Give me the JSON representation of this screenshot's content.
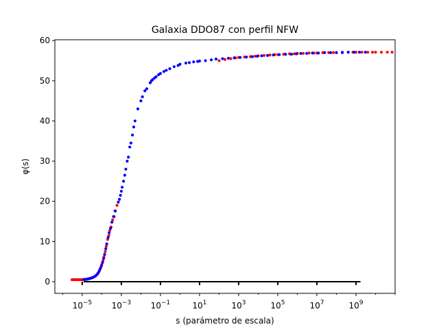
{
  "chart_data": {
    "type": "scatter",
    "title": "Galaxia DDO87 con perfil NFW",
    "xlabel": "s (parámetro de escala)",
    "ylabel": "φ(s)",
    "xscale": "log",
    "xlim": [
      4e-07,
      100000000000.0
    ],
    "ylim": [
      -2.9,
      60.2
    ],
    "x_ticks": [
      {
        "value": 1e-05,
        "label": "10",
        "exp": "−5"
      },
      {
        "value": 0.001,
        "label": "10",
        "exp": "−3"
      },
      {
        "value": 0.1,
        "label": "10",
        "exp": "−1"
      },
      {
        "value": 10.0,
        "label": "10",
        "exp": "1"
      },
      {
        "value": 1000.0,
        "label": "10",
        "exp": "3"
      },
      {
        "value": 100000.0,
        "label": "10",
        "exp": "5"
      },
      {
        "value": 10000000.0,
        "label": "10",
        "exp": "7"
      },
      {
        "value": 1000000000.0,
        "label": "10",
        "exp": "9"
      }
    ],
    "y_ticks": [
      0,
      10,
      20,
      30,
      40,
      50,
      60
    ],
    "hline": {
      "y": 0,
      "x_from": 1.2e-05,
      "x_to": 1700000000.0,
      "color": "#000000"
    },
    "series": [
      {
        "color": "#ff0000",
        "points": [
          [
            3e-06,
            0.5
          ],
          [
            3.5e-06,
            0.5
          ],
          [
            4e-06,
            0.5
          ],
          [
            4.5e-06,
            0.5
          ],
          [
            5e-06,
            0.5
          ],
          [
            5.6e-06,
            0.5
          ],
          [
            6.3e-06,
            0.5
          ],
          [
            7e-06,
            0.5
          ],
          [
            7.9e-06,
            0.5
          ],
          [
            8.9e-06,
            0.5
          ],
          [
            1e-05,
            0.5
          ],
          [
            1.2e-05,
            0.5
          ],
          [
            1.4e-05,
            0.55
          ],
          [
            1.7e-05,
            0.6
          ],
          [
            2e-05,
            0.7
          ],
          [
            2.4e-05,
            0.8
          ],
          [
            2.8e-05,
            0.9
          ],
          [
            3.3e-05,
            1.0
          ],
          [
            4e-05,
            1.2
          ],
          [
            5e-05,
            1.5
          ],
          [
            6e-05,
            1.9
          ],
          [
            7e-05,
            2.4
          ],
          [
            8e-05,
            3.0
          ],
          [
            9e-05,
            3.6
          ],
          [
            0.0001,
            4.3
          ],
          [
            0.000115,
            5.2
          ],
          [
            0.00013,
            6.2
          ],
          [
            0.00015,
            7.5
          ],
          [
            0.00017,
            8.8
          ],
          [
            0.0002,
            10.5
          ],
          [
            0.00023,
            11.5
          ],
          [
            0.00026,
            12.8
          ],
          [
            0.0003,
            13.6
          ],
          [
            0.00036,
            15.4
          ],
          [
            0.00043,
            16.2
          ],
          [
            0.0005,
            17.6
          ],
          [
            0.0006,
            19.0
          ],
          [
            100.0,
            55.0
          ],
          [
            200.0,
            55.3
          ],
          [
            400.0,
            55.5
          ],
          [
            700.0,
            55.7
          ],
          [
            1000.0,
            55.8
          ],
          [
            2000.0,
            55.9
          ],
          [
            4000.0,
            56.0
          ],
          [
            7000.0,
            56.1
          ],
          [
            10000.0,
            56.2
          ],
          [
            20000.0,
            56.3
          ],
          [
            40000.0,
            56.4
          ],
          [
            70000.0,
            56.5
          ],
          [
            100000.0,
            56.5
          ],
          [
            200000.0,
            56.6
          ],
          [
            400000.0,
            56.7
          ],
          [
            700000.0,
            56.7
          ],
          [
            1000000.0,
            56.8
          ],
          [
            2000000.0,
            56.8
          ],
          [
            4000000.0,
            56.9
          ],
          [
            7000000.0,
            56.9
          ],
          [
            10000000.0,
            56.9
          ],
          [
            20000000.0,
            57.0
          ],
          [
            40000000.0,
            57.0
          ],
          [
            70000000.0,
            57.0
          ],
          [
            100000000.0,
            57.0
          ],
          [
            200000000.0,
            57.1
          ],
          [
            400000000.0,
            57.1
          ],
          [
            700000000.0,
            57.1
          ],
          [
            1000000000.0,
            57.1
          ],
          [
            2000000000.0,
            57.1
          ],
          [
            4000000000.0,
            57.1
          ],
          [
            7000000000.0,
            57.1
          ],
          [
            10000000000.0,
            57.1
          ],
          [
            20000000000.0,
            57.1
          ],
          [
            40000000000.0,
            57.1
          ],
          [
            70000000000.0,
            57.1
          ]
        ]
      },
      {
        "color": "#0000ff",
        "points": [
          [
            1.2e-05,
            0.55
          ],
          [
            1.5e-05,
            0.6
          ],
          [
            1.8e-05,
            0.65
          ],
          [
            2.2e-05,
            0.75
          ],
          [
            2.7e-05,
            0.85
          ],
          [
            3.3e-05,
            1.0
          ],
          [
            4e-05,
            1.2
          ],
          [
            4.8e-05,
            1.45
          ],
          [
            5.7e-05,
            1.8
          ],
          [
            6.6e-05,
            2.2
          ],
          [
            7.5e-05,
            2.7
          ],
          [
            8.5e-05,
            3.3
          ],
          [
            9.7e-05,
            4.0
          ],
          [
            0.00011,
            4.8
          ],
          [
            0.000125,
            5.8
          ],
          [
            0.00014,
            6.8
          ],
          [
            0.00016,
            8.2
          ],
          [
            0.00018,
            9.4
          ],
          [
            0.00021,
            11.0
          ],
          [
            0.00024,
            12.2
          ],
          [
            0.00028,
            13.3
          ],
          [
            0.00033,
            14.8
          ],
          [
            0.0004,
            16.2
          ],
          [
            0.00048,
            17.6
          ],
          [
            0.0007,
            19.8
          ],
          [
            0.0008,
            20.5
          ],
          [
            0.0009,
            21.5
          ],
          [
            0.001,
            22.5
          ],
          [
            0.0011,
            23.5
          ],
          [
            0.0013,
            25.0
          ],
          [
            0.0015,
            26.5
          ],
          [
            0.0017,
            28.0
          ],
          [
            0.002,
            30.0
          ],
          [
            0.0023,
            31.0
          ],
          [
            0.0027,
            33.5
          ],
          [
            0.0031,
            34.5
          ],
          [
            0.0037,
            36.5
          ],
          [
            0.0043,
            38.5
          ],
          [
            0.005,
            40.0
          ],
          [
            0.007,
            43.0
          ],
          [
            0.01,
            45.0
          ],
          [
            0.012,
            46.0
          ],
          [
            0.016,
            47.5
          ],
          [
            0.02,
            48.0
          ],
          [
            0.03,
            49.5
          ],
          [
            0.035,
            50.0
          ],
          [
            0.04,
            50.3
          ],
          [
            0.05,
            50.7
          ],
          [
            0.06,
            51.0
          ],
          [
            0.08,
            51.5
          ],
          [
            0.1,
            51.8
          ],
          [
            0.15,
            52.3
          ],
          [
            0.2,
            52.6
          ],
          [
            0.3,
            53.0
          ],
          [
            0.5,
            53.5
          ],
          [
            0.8,
            53.8
          ],
          [
            1.0,
            54.1
          ],
          [
            2.0,
            54.4
          ],
          [
            3.0,
            54.5
          ],
          [
            5.0,
            54.7
          ],
          [
            8.0,
            54.8
          ],
          [
            10.0,
            54.9
          ],
          [
            20.0,
            55.0
          ],
          [
            40.0,
            55.2
          ],
          [
            70.0,
            55.4
          ],
          [
            150.0,
            55.5
          ],
          [
            300.0,
            55.6
          ],
          [
            600.0,
            55.7
          ],
          [
            1200.0,
            55.8
          ],
          [
            2500.0,
            55.9
          ],
          [
            5000.0,
            56.0
          ],
          [
            9000.0,
            56.1
          ],
          [
            15000.0,
            56.2
          ],
          [
            30000.0,
            56.3
          ],
          [
            60000.0,
            56.4
          ],
          [
            120000.0,
            56.5
          ],
          [
            250000.0,
            56.6
          ],
          [
            500000.0,
            56.6
          ],
          [
            900000.0,
            56.7
          ],
          [
            1500000.0,
            56.8
          ],
          [
            3000000.0,
            56.8
          ],
          [
            6000000.0,
            56.9
          ],
          [
            12000000.0,
            56.9
          ],
          [
            25000000.0,
            57.0
          ],
          [
            50000000.0,
            57.0
          ],
          [
            100000000.0,
            57.0
          ],
          [
            200000000.0,
            57.0
          ],
          [
            400000000.0,
            57.1
          ],
          [
            800000000.0,
            57.1
          ],
          [
            1500000000.0,
            57.1
          ],
          [
            3000000000.0,
            57.1
          ]
        ]
      }
    ]
  }
}
